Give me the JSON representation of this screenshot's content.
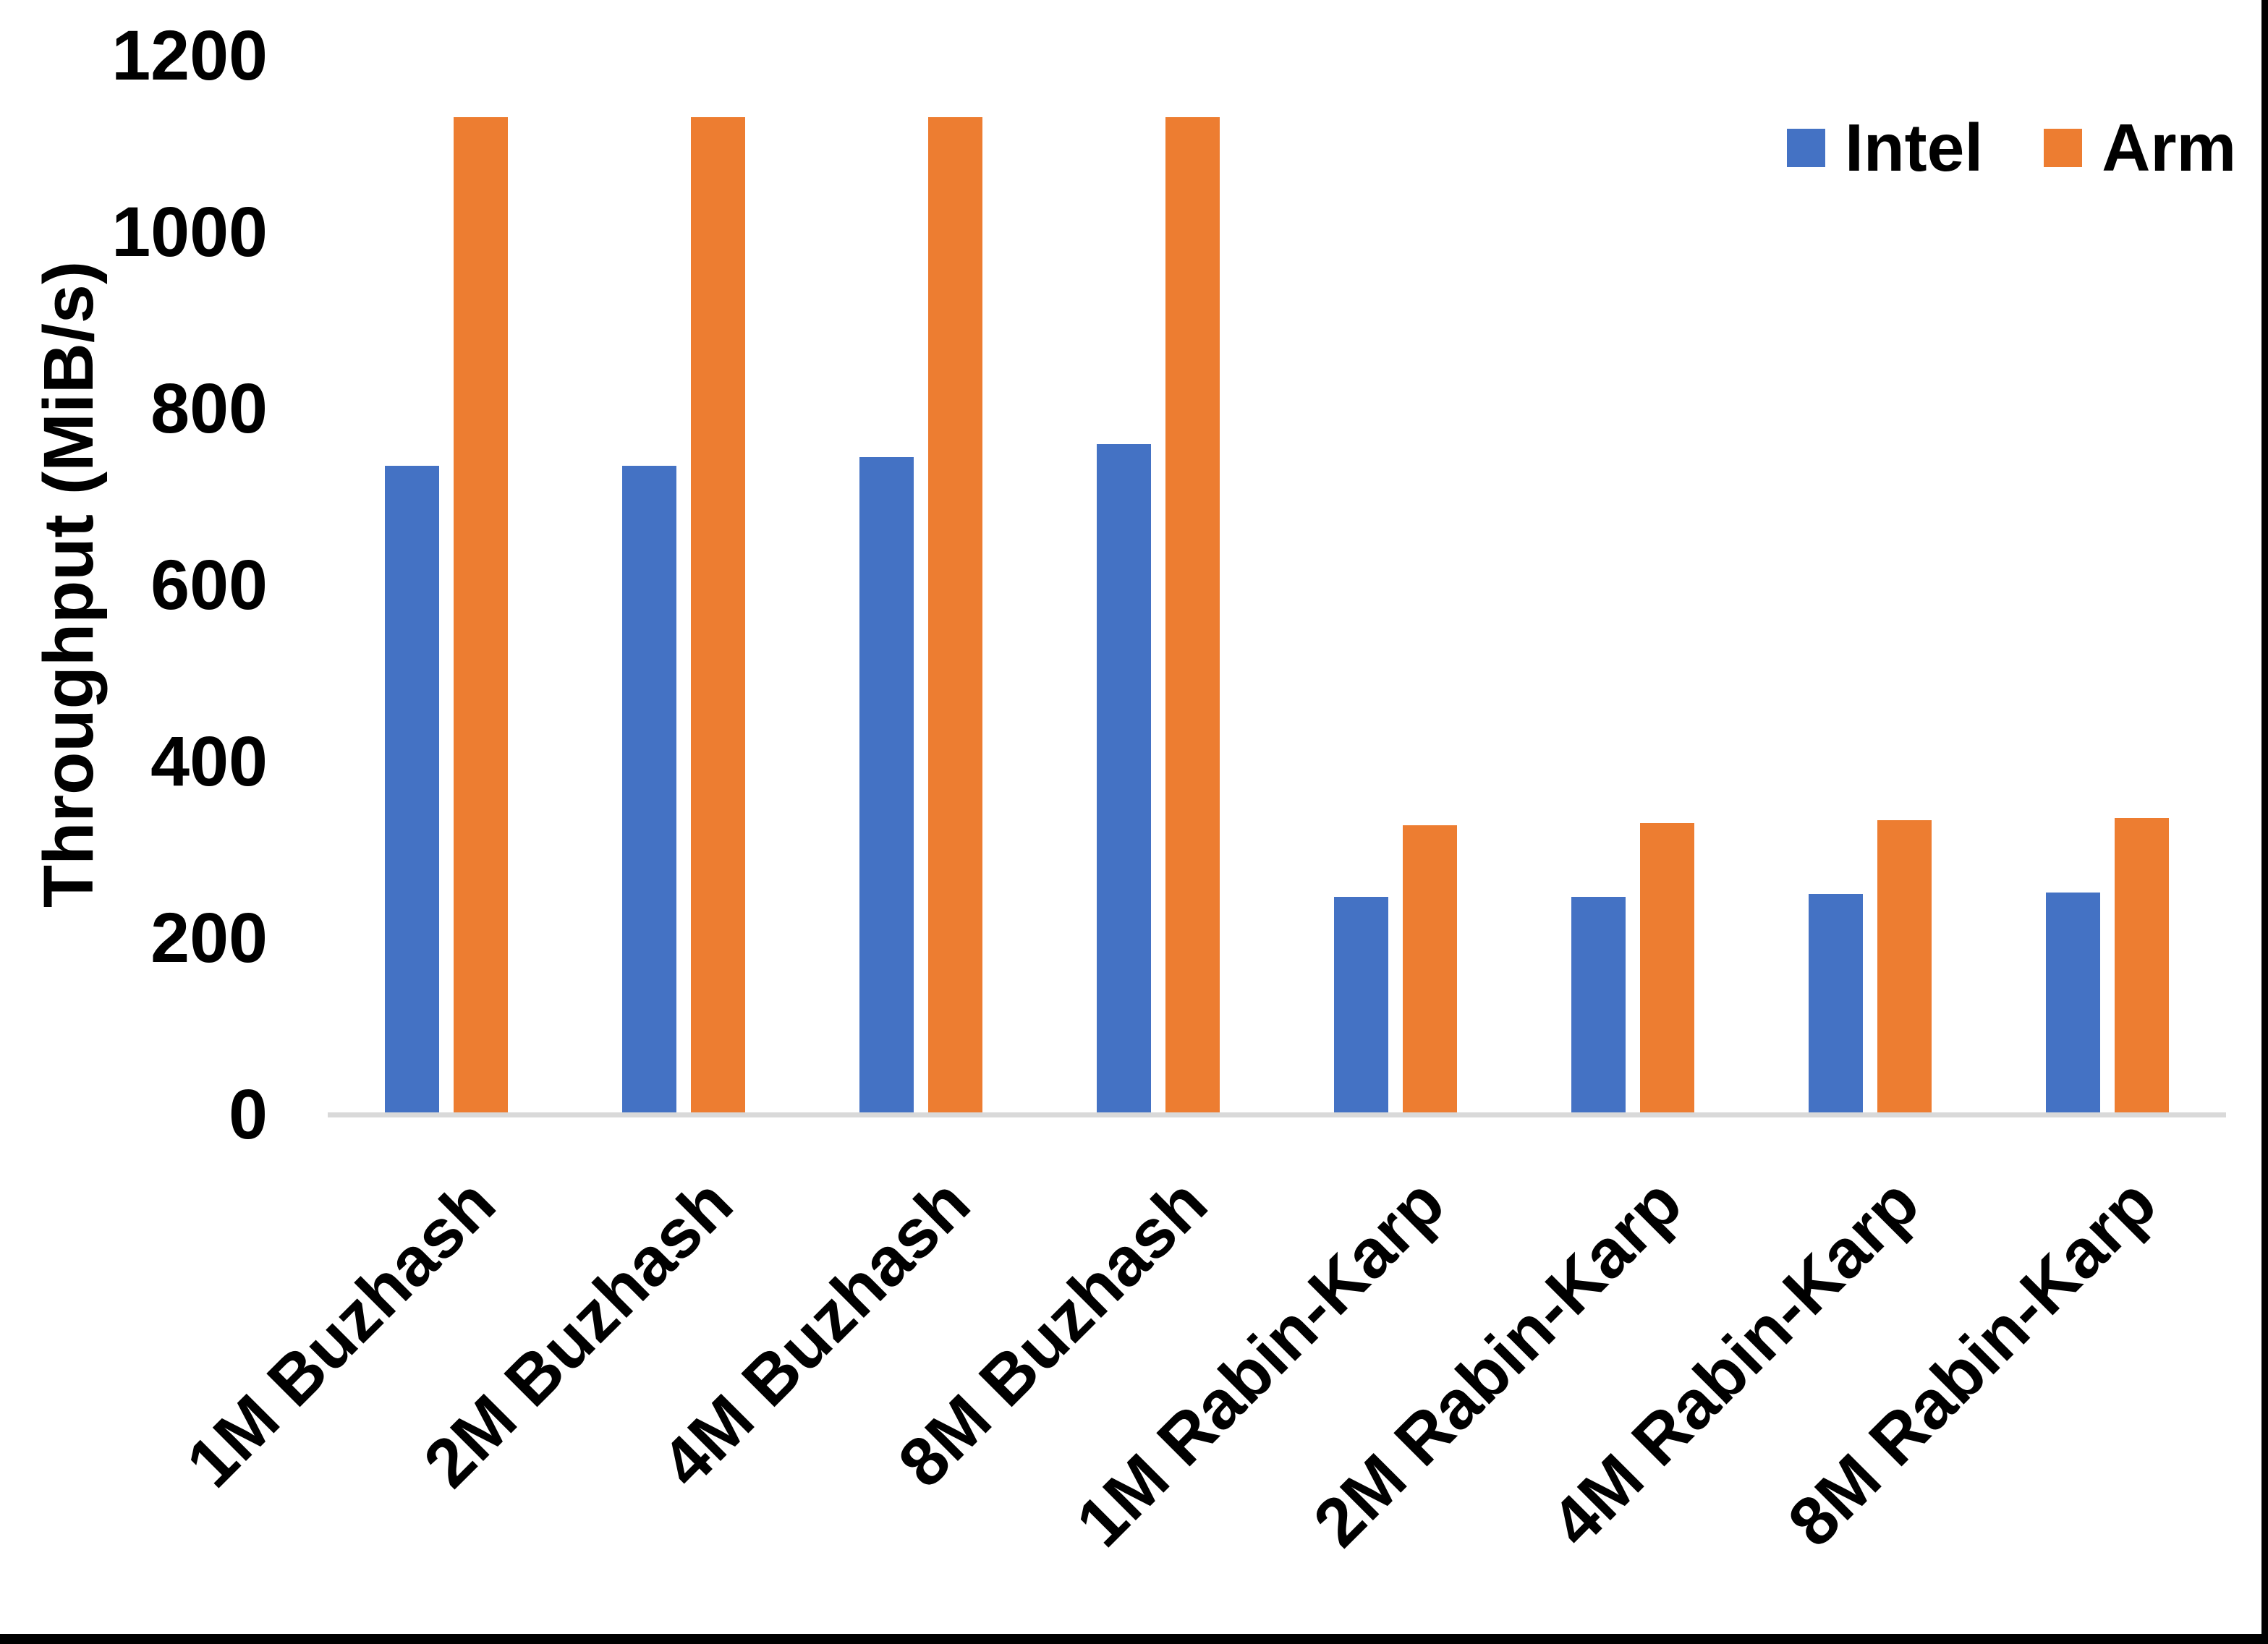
{
  "chart_data": {
    "type": "bar",
    "title": "",
    "xlabel": "",
    "ylabel": "Throughput (MiB/s)",
    "ylim": [
      0,
      1200
    ],
    "yticks": [
      "0",
      "200",
      "400",
      "600",
      "800",
      "1000",
      "1200"
    ],
    "grid": false,
    "legend_position": "top-right",
    "categories": [
      "1M Buzhash",
      "2M Buzhash",
      "4M Buzhash",
      "8M Buzhash",
      "1M Rabin-Karp",
      "2M Rabin-Karp",
      "4M Rabin-Karp",
      "8M Rabin-Karp"
    ],
    "series": [
      {
        "name": "Intel",
        "color": "#4472C4",
        "values": [
          735,
          735,
          745,
          760,
          247,
          247,
          250,
          252
        ]
      },
      {
        "name": "Arm",
        "color": "#ED7D31",
        "values": [
          1130,
          1130,
          1130,
          1130,
          328,
          330,
          334,
          336
        ]
      }
    ],
    "colors": {
      "axis_line": "#d9d9d9",
      "text": "#000000",
      "page_edge": "#000000"
    }
  }
}
